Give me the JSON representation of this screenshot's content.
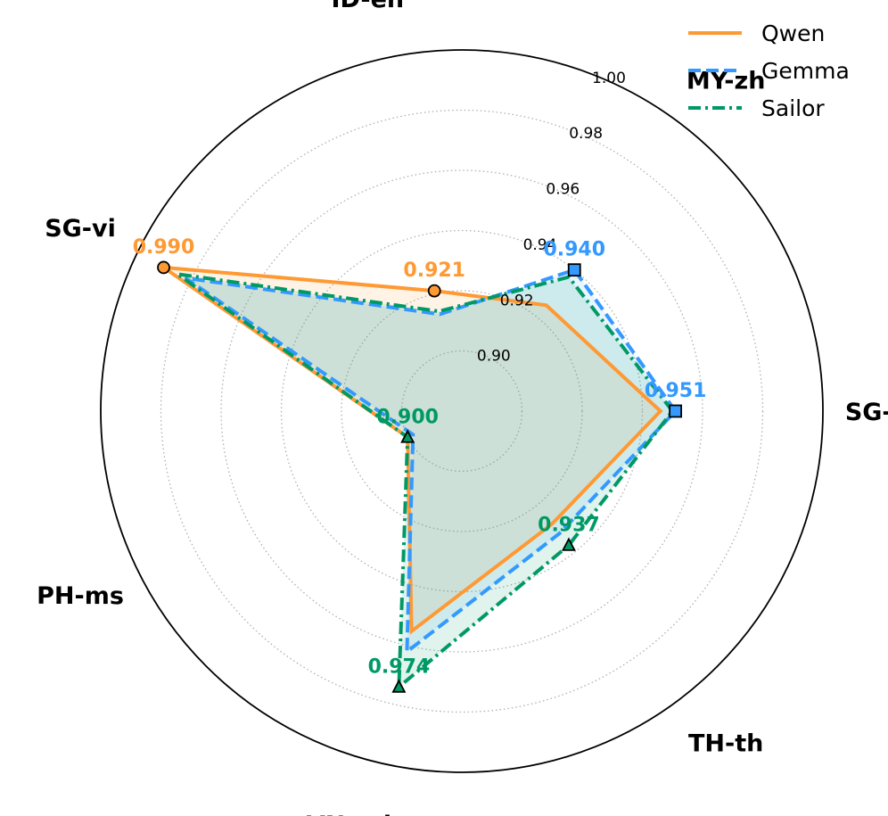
{
  "chart_data": {
    "type": "radar",
    "categories": [
      "SG-en",
      "MY-zh",
      "ID-en",
      "SG-vi",
      "PH-ms",
      "VN-other",
      "TH-th"
    ],
    "rlim": [
      0.88,
      1.0
    ],
    "r_ticks": [
      0.9,
      0.92,
      0.94,
      0.96,
      0.98,
      1.0
    ],
    "r_tick_labels": [
      "0.90",
      "0.92",
      "0.94",
      "0.96",
      "0.98",
      "1.00"
    ],
    "grid": true,
    "legend_position": "top-right",
    "series": [
      {
        "name": "Qwen",
        "color": "#ff9933",
        "line_style": "solid",
        "values": [
          0.946,
          0.925,
          0.921,
          0.99,
          0.9,
          0.955,
          0.928
        ]
      },
      {
        "name": "Gemma",
        "color": "#3399ff",
        "line_style": "dashed",
        "values": [
          0.951,
          0.94,
          0.913,
          0.982,
          0.898,
          0.962,
          0.932
        ]
      },
      {
        "name": "Sailor",
        "color": "#009966",
        "line_style": "dash-dot",
        "values": [
          0.95,
          0.937,
          0.914,
          0.985,
          0.9,
          0.974,
          0.937
        ]
      }
    ],
    "max_labels": [
      {
        "category": "SG-en",
        "text": "0.951",
        "series": "Gemma",
        "marker": "square"
      },
      {
        "category": "MY-zh",
        "text": "0.940",
        "series": "Gemma",
        "marker": "square"
      },
      {
        "category": "ID-en",
        "text": "0.921",
        "series": "Qwen",
        "marker": "circle"
      },
      {
        "category": "SG-vi",
        "text": "0.990",
        "series": "Qwen",
        "marker": "circle"
      },
      {
        "category": "PH-ms",
        "text": "0.900",
        "series": "Sailor",
        "marker": "triangle"
      },
      {
        "category": "VN-other",
        "text": "0.974",
        "series": "Sailor",
        "marker": "triangle"
      },
      {
        "category": "TH-th",
        "text": "0.937",
        "series": "Sailor",
        "marker": "triangle"
      }
    ]
  }
}
